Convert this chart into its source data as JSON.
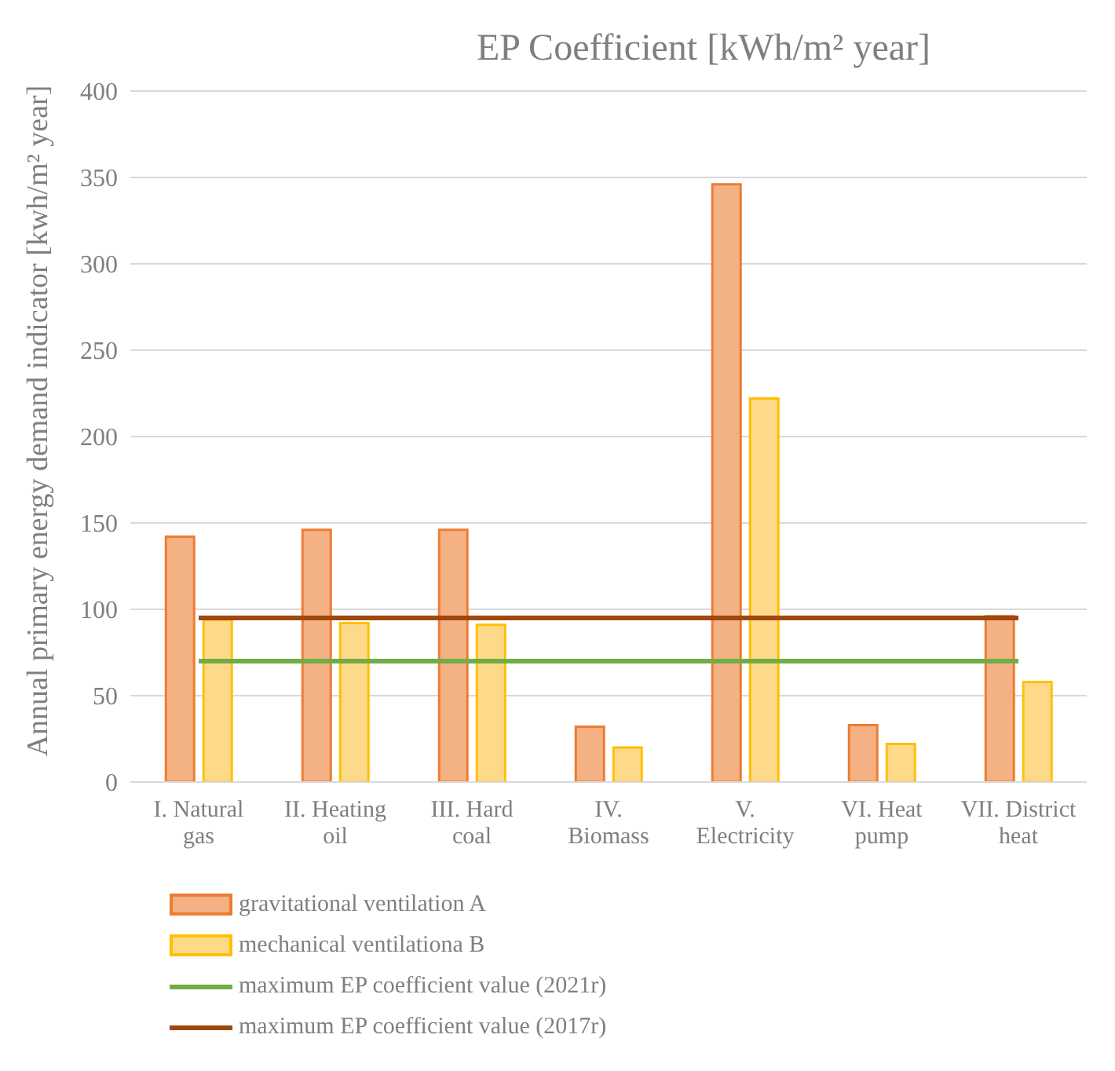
{
  "chart_data": {
    "type": "bar",
    "title": "EP Coefficient [kWh/m² year]",
    "ylabel": "Annual primary energy demand indicator [kwh/m² year]",
    "categories": [
      "I. Natural gas",
      "II. Heating oil",
      "III. Hard coal",
      "IV. Biomass",
      "V. Electricity",
      "VI. Heat pump",
      "VII. District heat"
    ],
    "series": [
      {
        "name": "gravitational ventilation A",
        "color": "#f4b183",
        "values": [
          142,
          146,
          146,
          32,
          346,
          33,
          96
        ]
      },
      {
        "name": "mechanical ventilationa B",
        "color": "#ffd98a",
        "values": [
          94,
          92,
          91,
          20,
          222,
          22,
          58
        ]
      },
      {
        "name": "maximum EP coefficient value (2021r)",
        "type": "line",
        "color": "#70ad47",
        "values": [
          70,
          70,
          70,
          70,
          70,
          70,
          70
        ]
      },
      {
        "name": "maximum EP coefficient value (2017r)",
        "type": "line",
        "color": "#9e480e",
        "values": [
          95,
          95,
          95,
          95,
          95,
          95,
          95
        ]
      }
    ],
    "ylim": [
      0,
      400
    ],
    "yticks": [
      0,
      50,
      100,
      150,
      200,
      250,
      300,
      350,
      400
    ],
    "grid": "y",
    "legend": "bottom left",
    "marker": "none"
  }
}
